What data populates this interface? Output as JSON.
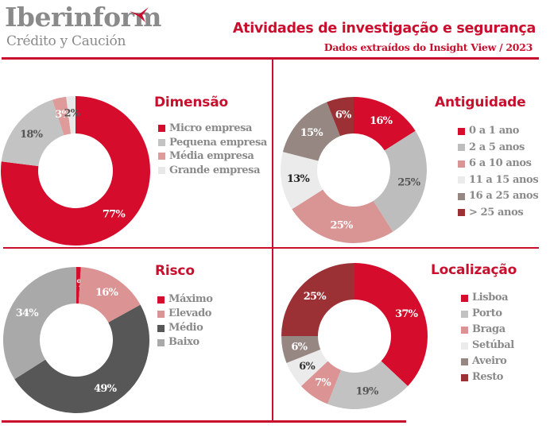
{
  "header": {
    "logo_name": "Iberinform",
    "logo_tagline": "Crédito y Caución",
    "title": "Atividades de investigação e segurança",
    "subtitle": "Dados extraídos do Insight View / 2023"
  },
  "colors": {
    "accent": "#c8102e",
    "text_gray": "#8a8a8a"
  },
  "chart_data": [
    {
      "type": "pie",
      "variant": "donut",
      "title": "Dimensão",
      "legend_position": "right",
      "categories": [
        "Micro empresa",
        "Pequena empresa",
        "Média empresa",
        "Grande empresa"
      ],
      "values": [
        77,
        18,
        3,
        2
      ],
      "labels": [
        "77%",
        "18%",
        "3%",
        "2%"
      ],
      "colors": [
        "#d50c2b",
        "#c3c3c3",
        "#df9a9a",
        "#e8e8e8"
      ],
      "label_colors": [
        "#ffffff",
        "#555555",
        "#ffffff",
        "#555555"
      ]
    },
    {
      "type": "pie",
      "variant": "donut",
      "title": "Antiguidade",
      "legend_position": "right",
      "categories": [
        "0 a 1 ano",
        "2 a 5 anos",
        "6 a 10 anos",
        "11 a 15 anos",
        "16 a 25 anos",
        "> 25 anos"
      ],
      "values": [
        16,
        25,
        25,
        13,
        15,
        6
      ],
      "labels": [
        "16%",
        "25%",
        "25%",
        "13%",
        "15%",
        "6%"
      ],
      "colors": [
        "#d50c2b",
        "#bdbdbd",
        "#d99494",
        "#ebebeb",
        "#978782",
        "#9c3135"
      ],
      "label_colors": [
        "#ffffff",
        "#555555",
        "#ffffff",
        "#222222",
        "#ffffff",
        "#ffffff"
      ]
    },
    {
      "type": "pie",
      "variant": "donut",
      "title": "Risco",
      "legend_position": "right",
      "categories": [
        "Máximo",
        "Elevado",
        "Médio",
        "Baixo"
      ],
      "values": [
        1,
        16,
        49,
        34
      ],
      "labels": [
        "1%",
        "16%",
        "49%",
        "34%"
      ],
      "colors": [
        "#d50c2b",
        "#dc9393",
        "#575757",
        "#a9a9a9"
      ],
      "label_colors": [
        "#ffffff",
        "#ffffff",
        "#ffffff",
        "#ffffff"
      ]
    },
    {
      "type": "pie",
      "variant": "donut",
      "title": "Localização",
      "legend_position": "right",
      "categories": [
        "Lisboa",
        "Porto",
        "Braga",
        "Setúbal",
        "Aveiro",
        "Resto"
      ],
      "values": [
        37,
        19,
        7,
        6,
        6,
        25
      ],
      "labels": [
        "37%",
        "19%",
        "7%",
        "6%",
        "6%",
        "25%"
      ],
      "colors": [
        "#d50c2b",
        "#c2c2c2",
        "#dc9393",
        "#ebebeb",
        "#978782",
        "#9c3135"
      ],
      "label_colors": [
        "#ffffff",
        "#555555",
        "#ffffff",
        "#333333",
        "#ffffff",
        "#ffffff"
      ]
    }
  ]
}
